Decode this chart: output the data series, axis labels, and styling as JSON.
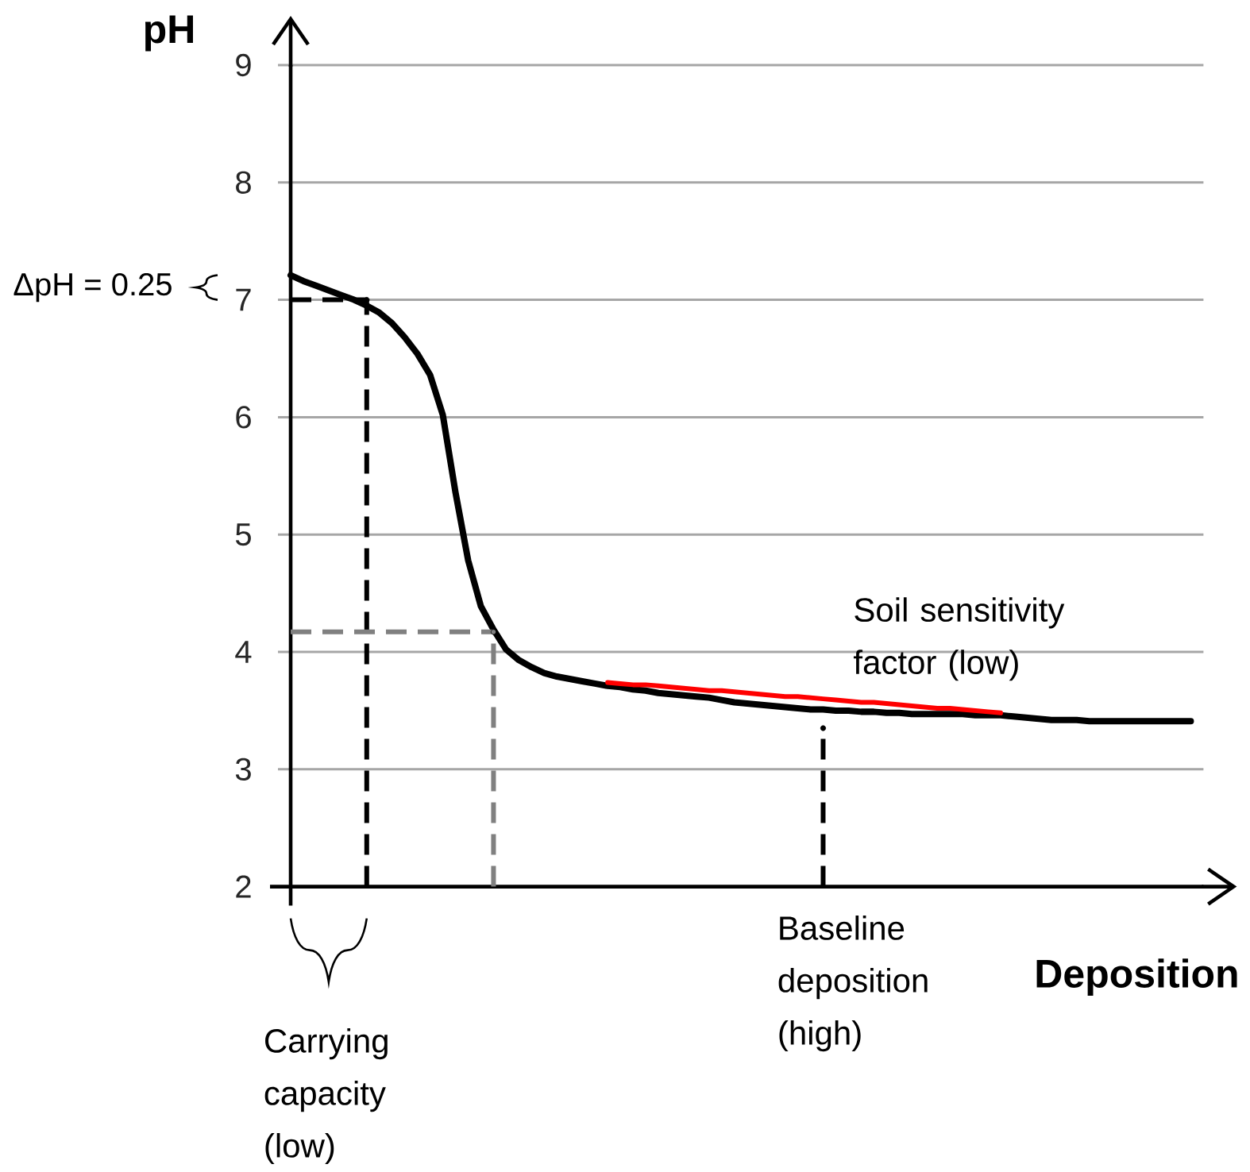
{
  "chart_data": {
    "type": "line",
    "xlabel": "Deposition",
    "ylabel": "pH",
    "categories": [
      null,
      null,
      null,
      null,
      null,
      null,
      null,
      null,
      null,
      null,
      null,
      null,
      null,
      null,
      null,
      null,
      null,
      null,
      null,
      null,
      null,
      null,
      null,
      null,
      null,
      null,
      null,
      null,
      null,
      null,
      null,
      null,
      null,
      null,
      null,
      null,
      null,
      null,
      null,
      null,
      null,
      null,
      null,
      null,
      null,
      null,
      null,
      null,
      null,
      null,
      null,
      null,
      null,
      null,
      null,
      null,
      null,
      null,
      null,
      null,
      null,
      null,
      null,
      null,
      null,
      null,
      null,
      null,
      null,
      null,
      null,
      null,
      null
    ],
    "ylim": [
      2,
      9
    ],
    "yticks": [
      2,
      3,
      4,
      5,
      6,
      7,
      8,
      9
    ],
    "grid": "y",
    "tick_labels": "y",
    "series": [
      {
        "color": "#000000",
        "values": [
          7.21,
          7.16,
          7.12,
          7.08,
          7.04,
          7.0,
          6.95,
          6.89,
          6.8,
          6.68,
          6.54,
          6.36,
          6.02,
          5.36,
          4.78,
          4.39,
          4.19,
          4.02,
          3.93,
          3.87,
          3.82,
          3.79,
          3.77,
          3.75,
          3.73,
          3.71,
          3.7,
          3.68,
          3.67,
          3.65,
          3.64,
          3.63,
          3.62,
          3.61,
          3.59,
          3.57,
          3.56,
          3.55,
          3.54,
          3.53,
          3.52,
          3.51,
          3.51,
          3.5,
          3.5,
          3.49,
          3.49,
          3.48,
          3.48,
          3.47,
          3.47,
          3.47,
          3.47,
          3.47,
          3.46,
          3.46,
          3.46,
          3.45,
          3.44,
          3.43,
          3.42,
          3.42,
          3.42,
          3.41,
          3.41,
          3.41,
          3.41,
          3.41,
          3.41,
          3.41,
          3.41,
          3.41,
          null
        ]
      },
      {
        "color": "#ff0000",
        "values": [
          null,
          null,
          null,
          null,
          null,
          null,
          null,
          null,
          null,
          null,
          null,
          null,
          null,
          null,
          null,
          null,
          null,
          null,
          null,
          null,
          null,
          null,
          null,
          null,
          null,
          3.74,
          3.73,
          3.72,
          3.72,
          3.71,
          3.7,
          3.69,
          3.68,
          3.67,
          3.67,
          3.66,
          3.65,
          3.64,
          3.63,
          3.62,
          3.62,
          3.61,
          3.6,
          3.59,
          3.58,
          3.57,
          3.57,
          3.56,
          3.55,
          3.54,
          3.53,
          3.52,
          3.52,
          3.51,
          3.5,
          3.49,
          3.48,
          null,
          null,
          null,
          null,
          null,
          null,
          null,
          null,
          null,
          null,
          null,
          null,
          null,
          null,
          null,
          null
        ]
      },
      {
        "color": "#000000",
        "line_style": "dashed",
        "values": [
          7,
          7,
          7,
          7,
          7,
          7,
          7,
          null,
          null,
          null,
          null,
          null,
          null,
          null,
          null,
          null,
          null,
          null,
          null,
          null,
          null,
          null,
          null,
          null,
          null,
          null,
          null,
          null,
          null,
          null,
          null,
          null,
          null,
          null,
          null,
          null,
          null,
          null,
          null,
          null,
          null,
          null,
          null,
          null,
          null,
          null,
          null,
          null,
          null,
          null,
          null,
          null,
          null,
          null,
          null,
          null,
          null,
          null,
          null,
          null,
          null,
          null,
          null,
          null,
          null,
          null,
          null,
          null,
          null,
          null,
          null,
          null,
          null
        ]
      },
      {
        "type": "lollipop",
        "color": "#000000",
        "line_style": "dashed",
        "values": [
          null,
          null,
          null,
          null,
          null,
          null,
          7,
          null,
          null,
          null,
          null,
          null,
          null,
          null,
          null,
          null,
          null,
          null,
          null,
          null,
          null,
          null,
          null,
          null,
          null,
          null,
          null,
          null,
          null,
          null,
          null,
          null,
          null,
          null,
          null,
          null,
          null,
          null,
          null,
          null,
          null,
          null,
          null,
          null,
          null,
          null,
          null,
          null,
          null,
          null,
          null,
          null,
          null,
          null,
          null,
          null,
          null,
          null,
          null,
          null,
          null,
          null,
          null,
          null,
          null,
          null,
          null,
          null,
          null,
          null,
          null,
          null,
          null
        ]
      },
      {
        "color": "#808080",
        "line_style": "dashed",
        "values": [
          4.17,
          4.17,
          4.17,
          4.17,
          4.17,
          4.17,
          4.17,
          4.17,
          4.17,
          4.17,
          4.17,
          4.17,
          4.17,
          4.17,
          4.17,
          4.17,
          4.17,
          null,
          null,
          null,
          null,
          null,
          null,
          null,
          null,
          null,
          null,
          null,
          null,
          null,
          null,
          null,
          null,
          null,
          null,
          null,
          null,
          null,
          null,
          null,
          null,
          null,
          null,
          null,
          null,
          null,
          null,
          null,
          null,
          null,
          null,
          null,
          null,
          null,
          null,
          null,
          null,
          null,
          null,
          null,
          null,
          null,
          null,
          null,
          null,
          null,
          null,
          null,
          null,
          null,
          null,
          null,
          null
        ]
      },
      {
        "type": "lollipop",
        "color": "#808080",
        "line_style": "dashed",
        "values": [
          null,
          null,
          null,
          null,
          null,
          null,
          null,
          null,
          null,
          null,
          null,
          null,
          null,
          null,
          null,
          null,
          4.17,
          null,
          null,
          null,
          null,
          null,
          null,
          null,
          null,
          null,
          null,
          null,
          null,
          null,
          null,
          null,
          null,
          null,
          null,
          null,
          null,
          null,
          null,
          null,
          null,
          null,
          null,
          null,
          null,
          null,
          null,
          null,
          null,
          null,
          null,
          null,
          null,
          null,
          null,
          null,
          null,
          null,
          null,
          null,
          null,
          null,
          null,
          null,
          null,
          null,
          null,
          null,
          null,
          null,
          null,
          null,
          null
        ]
      },
      {
        "type": "lollipop",
        "color": "#000000",
        "line_style": "dashed",
        "values": [
          null,
          null,
          null,
          null,
          null,
          null,
          null,
          null,
          null,
          null,
          null,
          null,
          null,
          null,
          null,
          null,
          null,
          null,
          null,
          null,
          null,
          null,
          null,
          null,
          null,
          null,
          null,
          null,
          null,
          null,
          null,
          null,
          null,
          null,
          null,
          null,
          null,
          null,
          null,
          null,
          null,
          null,
          3.35,
          null,
          null,
          null,
          null,
          null,
          null,
          null,
          null,
          null,
          null,
          null,
          null,
          null,
          null,
          null,
          null,
          null,
          null,
          null,
          null,
          null,
          null,
          null,
          null,
          null,
          null,
          null,
          null,
          null,
          null
        ]
      }
    ],
    "annotations": [
      "ΔpH = 0.25",
      "Soil sensitivity factor (low)",
      "Baseline deposition (high)",
      "Carrying capacity (low)"
    ]
  }
}
